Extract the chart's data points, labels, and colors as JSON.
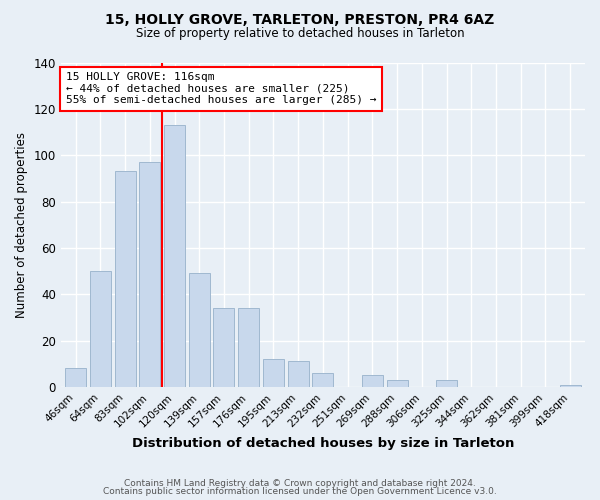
{
  "title1": "15, HOLLY GROVE, TARLETON, PRESTON, PR4 6AZ",
  "title2": "Size of property relative to detached houses in Tarleton",
  "xlabel": "Distribution of detached houses by size in Tarleton",
  "ylabel": "Number of detached properties",
  "bar_labels": [
    "46sqm",
    "64sqm",
    "83sqm",
    "102sqm",
    "120sqm",
    "139sqm",
    "157sqm",
    "176sqm",
    "195sqm",
    "213sqm",
    "232sqm",
    "251sqm",
    "269sqm",
    "288sqm",
    "306sqm",
    "325sqm",
    "344sqm",
    "362sqm",
    "381sqm",
    "399sqm",
    "418sqm"
  ],
  "bar_heights": [
    8,
    50,
    93,
    97,
    113,
    49,
    34,
    34,
    12,
    11,
    6,
    0,
    5,
    3,
    0,
    3,
    0,
    0,
    0,
    0,
    1
  ],
  "bar_color": "#c8d8ec",
  "bar_edge_color": "#a0b8d0",
  "vline_color": "red",
  "annotation_text": "15 HOLLY GROVE: 116sqm\n← 44% of detached houses are smaller (225)\n55% of semi-detached houses are larger (285) →",
  "annotation_box_color": "white",
  "annotation_box_edge_color": "red",
  "ylim": [
    0,
    140
  ],
  "yticks": [
    0,
    20,
    40,
    60,
    80,
    100,
    120,
    140
  ],
  "footer1": "Contains HM Land Registry data © Crown copyright and database right 2024.",
  "footer2": "Contains public sector information licensed under the Open Government Licence v3.0.",
  "background_color": "#e8eff6",
  "plot_bg_color": "#e8eff6",
  "grid_color": "white"
}
